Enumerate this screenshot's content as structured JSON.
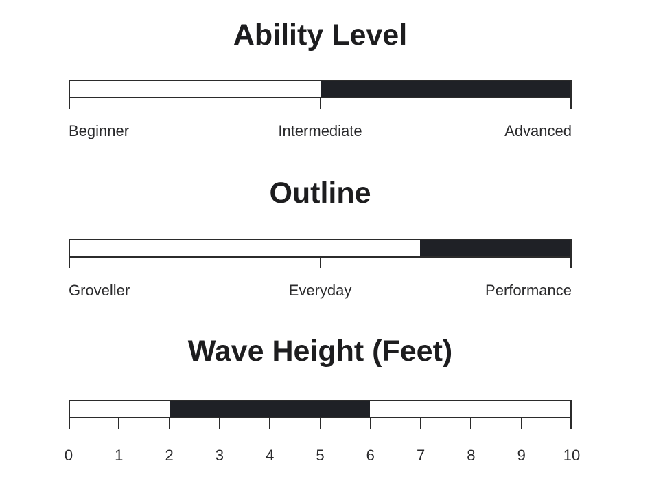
{
  "page": {
    "background": "#ffffff"
  },
  "colors": {
    "bar_fill": "#1f2126",
    "bar_border": "#2b2b2b",
    "axis_line": "#2b2b2b",
    "title_text": "#1d1d1f",
    "label_text": "#2a2a2c"
  },
  "chart_data": [
    {
      "type": "bar",
      "subtype": "filled-range-track",
      "title": "Ability Level",
      "axis": {
        "min": 0,
        "max": 10,
        "grid": false
      },
      "filled_range": [
        5,
        10
      ],
      "ticks": [
        {
          "pos": 0,
          "label": "Beginner",
          "align": "left"
        },
        {
          "pos": 5,
          "label": "Intermediate",
          "align": "center"
        },
        {
          "pos": 10,
          "label": "Advanced",
          "align": "right"
        }
      ]
    },
    {
      "type": "bar",
      "subtype": "filled-range-track",
      "title": "Outline",
      "axis": {
        "min": 0,
        "max": 10,
        "grid": false
      },
      "filled_range": [
        7,
        10
      ],
      "ticks": [
        {
          "pos": 0,
          "label": "Groveller",
          "align": "left"
        },
        {
          "pos": 5,
          "label": "Everyday",
          "align": "center"
        },
        {
          "pos": 10,
          "label": "Performance",
          "align": "right"
        }
      ]
    },
    {
      "type": "bar",
      "subtype": "filled-range-track",
      "title": "Wave Height (Feet)",
      "axis": {
        "min": 0,
        "max": 10,
        "grid": false
      },
      "filled_range": [
        2,
        6
      ],
      "ticks": [
        {
          "pos": 0,
          "label": "0",
          "align": "center"
        },
        {
          "pos": 1,
          "label": "1",
          "align": "center"
        },
        {
          "pos": 2,
          "label": "2",
          "align": "center"
        },
        {
          "pos": 3,
          "label": "3",
          "align": "center"
        },
        {
          "pos": 4,
          "label": "4",
          "align": "center"
        },
        {
          "pos": 5,
          "label": "5",
          "align": "center"
        },
        {
          "pos": 6,
          "label": "6",
          "align": "center"
        },
        {
          "pos": 7,
          "label": "7",
          "align": "center"
        },
        {
          "pos": 8,
          "label": "8",
          "align": "center"
        },
        {
          "pos": 9,
          "label": "9",
          "align": "center"
        },
        {
          "pos": 10,
          "label": "10",
          "align": "center"
        }
      ]
    }
  ]
}
